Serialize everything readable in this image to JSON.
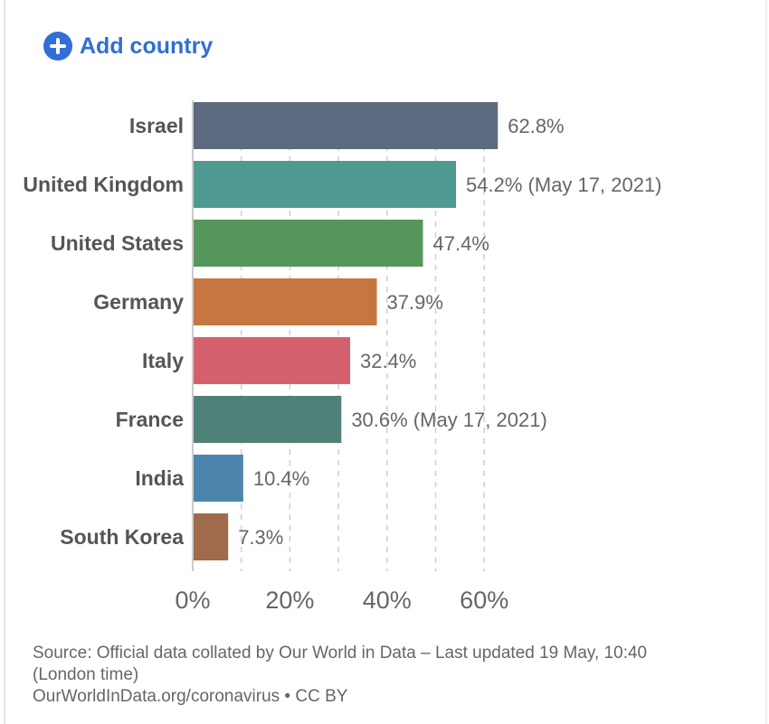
{
  "controls": {
    "add_country_label": "Add country"
  },
  "chart_data": {
    "type": "bar",
    "orientation": "horizontal",
    "categories": [
      "Israel",
      "United Kingdom",
      "United States",
      "Germany",
      "Italy",
      "France",
      "India",
      "South Korea"
    ],
    "values": [
      62.8,
      54.2,
      47.4,
      37.9,
      32.4,
      30.6,
      10.4,
      7.3
    ],
    "data_labels": [
      "62.8%",
      "54.2% (May 17, 2021)",
      "47.4%",
      "37.9%",
      "32.4%",
      "30.6% (May 17, 2021)",
      "10.4%",
      "7.3%"
    ],
    "colors": [
      "#5b6a7e",
      "#4f9990",
      "#55965b",
      "#c5773f",
      "#d5606d",
      "#4e8177",
      "#4b85ad",
      "#a06a4c"
    ],
    "xlim": [
      0,
      65
    ],
    "xticks": [
      0,
      20,
      40,
      60
    ],
    "xtick_labels": [
      "0%",
      "20%",
      "40%",
      "60%"
    ],
    "grid_step": 10,
    "grid": true,
    "xlabel": "",
    "ylabel": ""
  },
  "footer": {
    "source_line1": "Source: Official data collated by Our World in Data – Last updated 19 May, 10:40 (London time)",
    "source_line2": "OurWorldInData.org/coronavirus • CC BY"
  }
}
